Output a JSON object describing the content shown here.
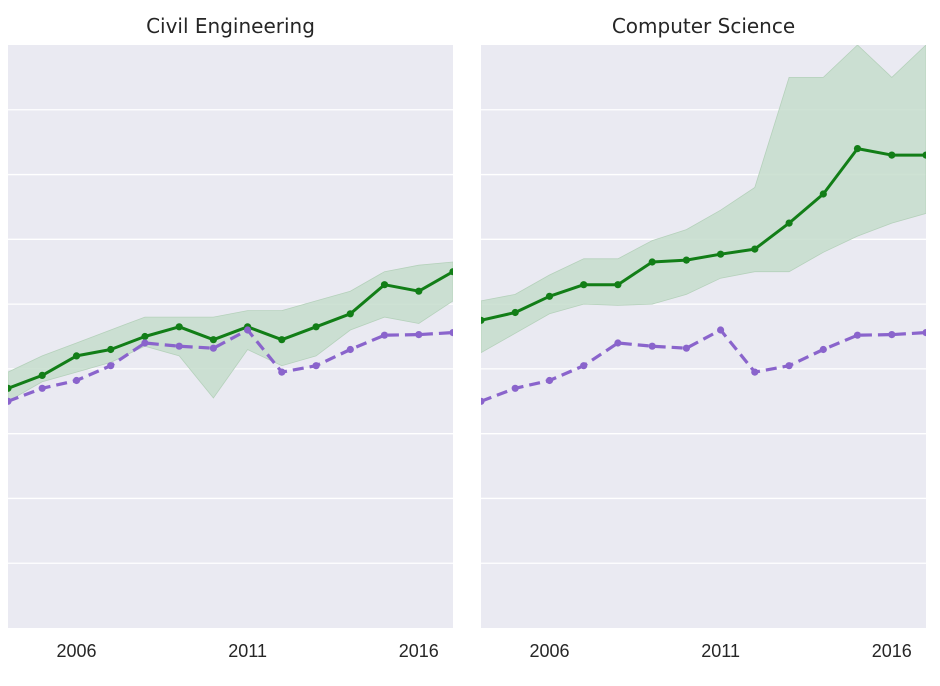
{
  "colors": {
    "background": "#eaeaf2",
    "grid": "#ffffff",
    "green_line": "#127e17",
    "green_band": "#c6ddcc",
    "purple_line": "#8a64cc"
  },
  "chart_data": [
    {
      "type": "line",
      "title": "Civil Engineering",
      "xlabel": "",
      "ylabel": "",
      "xlim": [
        2004,
        2017
      ],
      "ylim": [
        0,
        9
      ],
      "xticks": [
        2006,
        2011,
        2016
      ],
      "grid": true,
      "x": [
        2004,
        2005,
        2006,
        2007,
        2008,
        2009,
        2010,
        2011,
        2012,
        2013,
        2014,
        2015,
        2016,
        2017
      ],
      "series": [
        {
          "style": "solid",
          "color": "#127e17",
          "values": [
            3.7,
            3.9,
            4.2,
            4.3,
            4.5,
            4.65,
            4.45,
            4.65,
            4.45,
            4.65,
            4.85,
            5.3,
            5.2,
            5.5
          ],
          "band_lower": [
            3.5,
            3.8,
            3.95,
            4.1,
            4.35,
            4.2,
            3.55,
            4.3,
            4.05,
            4.2,
            4.6,
            4.8,
            4.7,
            5.05
          ],
          "band_upper": [
            3.95,
            4.2,
            4.4,
            4.6,
            4.8,
            4.8,
            4.8,
            4.9,
            4.9,
            5.05,
            5.2,
            5.5,
            5.6,
            5.65
          ]
        },
        {
          "style": "dashed",
          "color": "#8a64cc",
          "values": [
            3.5,
            3.7,
            3.82,
            4.05,
            4.4,
            4.35,
            4.32,
            4.6,
            3.95,
            4.05,
            4.3,
            4.52,
            4.53,
            4.56
          ]
        }
      ]
    },
    {
      "type": "line",
      "title": "Computer Science",
      "xlabel": "",
      "ylabel": "",
      "xlim": [
        2004,
        2017
      ],
      "ylim": [
        0,
        9
      ],
      "xticks": [
        2006,
        2011,
        2016
      ],
      "grid": true,
      "x": [
        2004,
        2005,
        2006,
        2007,
        2008,
        2009,
        2010,
        2011,
        2012,
        2013,
        2014,
        2015,
        2016,
        2017
      ],
      "series": [
        {
          "style": "solid",
          "color": "#127e17",
          "values": [
            4.75,
            4.87,
            5.12,
            5.3,
            5.3,
            5.65,
            5.68,
            5.77,
            5.85,
            6.25,
            6.7,
            7.4,
            7.3,
            7.3
          ],
          "band_lower": [
            4.25,
            4.55,
            4.85,
            5.0,
            4.98,
            5.0,
            5.15,
            5.4,
            5.5,
            5.5,
            5.8,
            6.05,
            6.25,
            6.4
          ],
          "band_upper": [
            5.05,
            5.15,
            5.45,
            5.7,
            5.7,
            5.98,
            6.15,
            6.45,
            6.8,
            8.5,
            8.5,
            9.0,
            8.5,
            9.0
          ]
        },
        {
          "style": "dashed",
          "color": "#8a64cc",
          "values": [
            3.5,
            3.7,
            3.82,
            4.05,
            4.4,
            4.35,
            4.32,
            4.6,
            3.95,
            4.05,
            4.3,
            4.52,
            4.53,
            4.56
          ]
        }
      ]
    }
  ]
}
